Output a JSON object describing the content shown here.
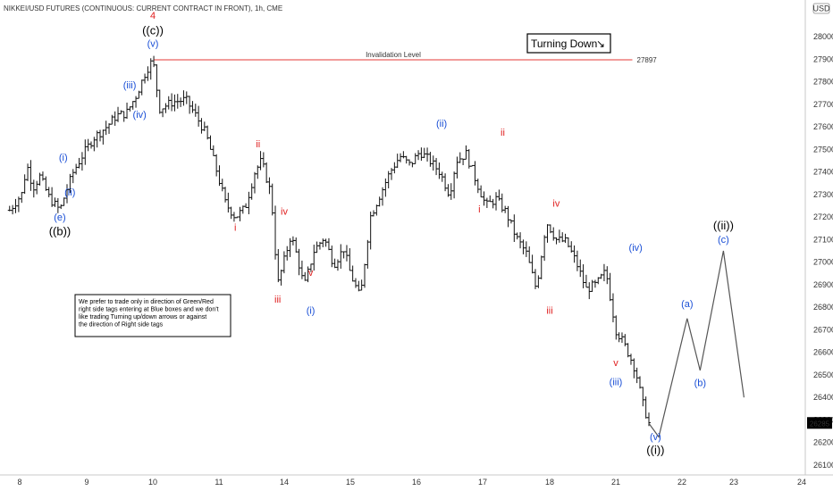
{
  "chart_data": {
    "type": "ohlc",
    "title": "NIKKEI/USD FUTURES (CONTINUOUS: CURRENT CONTRACT IN FRONT), 1h, CME",
    "currency_badge": "USD",
    "ylim": [
      26050,
      28150
    ],
    "y_ticks": [
      26100,
      26200,
      26300,
      26400,
      26500,
      26600,
      26700,
      26800,
      26900,
      27000,
      27100,
      27200,
      27300,
      27400,
      27500,
      27600,
      27700,
      27800,
      27900,
      28000
    ],
    "x_ticks": [
      {
        "label": "8",
        "t": 0
      },
      {
        "label": "9",
        "t": 1
      },
      {
        "label": "10",
        "t": 2
      },
      {
        "label": "11",
        "t": 3
      },
      {
        "label": "14",
        "t": 4
      },
      {
        "label": "15",
        "t": 5
      },
      {
        "label": "16",
        "t": 6
      },
      {
        "label": "17",
        "t": 7
      },
      {
        "label": "18",
        "t": 8
      },
      {
        "label": "21",
        "t": 9
      },
      {
        "label": "22",
        "t": 10
      },
      {
        "label": "23",
        "t": 11
      },
      {
        "label": "24",
        "t": 12
      }
    ],
    "price_path": [
      [
        -0.15,
        27230
      ],
      [
        0.05,
        27310
      ],
      [
        0.1,
        27440
      ],
      [
        0.2,
        27330
      ],
      [
        0.3,
        27380
      ],
      [
        0.45,
        27280
      ],
      [
        0.6,
        27230
      ],
      [
        0.7,
        27320
      ],
      [
        0.8,
        27400
      ],
      [
        0.95,
        27480
      ],
      [
        1.1,
        27550
      ],
      [
        1.3,
        27600
      ],
      [
        1.45,
        27650
      ],
      [
        1.6,
        27660
      ],
      [
        1.75,
        27740
      ],
      [
        1.9,
        27850
      ],
      [
        2.0,
        27897
      ],
      [
        2.1,
        27680
      ],
      [
        2.3,
        27710
      ],
      [
        2.5,
        27720
      ],
      [
        2.65,
        27650
      ],
      [
        2.8,
        27570
      ],
      [
        2.95,
        27420
      ],
      [
        3.1,
        27260
      ],
      [
        3.25,
        27200
      ],
      [
        3.4,
        27240
      ],
      [
        3.55,
        27400
      ],
      [
        3.65,
        27450
      ],
      [
        3.8,
        27300
      ],
      [
        3.9,
        26900
      ],
      [
        4.0,
        27010
      ],
      [
        4.1,
        27120
      ],
      [
        4.2,
        27020
      ],
      [
        4.3,
        26890
      ],
      [
        4.45,
        27050
      ],
      [
        4.6,
        27110
      ],
      [
        4.75,
        26990
      ],
      [
        4.9,
        27060
      ],
      [
        5.0,
        26950
      ],
      [
        5.15,
        26840
      ],
      [
        5.3,
        27200
      ],
      [
        5.45,
        27300
      ],
      [
        5.6,
        27400
      ],
      [
        5.75,
        27470
      ],
      [
        5.9,
        27430
      ],
      [
        6.05,
        27490
      ],
      [
        6.2,
        27450
      ],
      [
        6.35,
        27400
      ],
      [
        6.5,
        27300
      ],
      [
        6.6,
        27450
      ],
      [
        6.75,
        27480
      ],
      [
        6.9,
        27360
      ],
      [
        7.05,
        27250
      ],
      [
        7.2,
        27280
      ],
      [
        7.35,
        27220
      ],
      [
        7.5,
        27110
      ],
      [
        7.65,
        27040
      ],
      [
        7.8,
        26880
      ],
      [
        7.95,
        27180
      ],
      [
        8.1,
        27100
      ],
      [
        8.25,
        27090
      ],
      [
        8.4,
        27000
      ],
      [
        8.55,
        26880
      ],
      [
        8.7,
        26900
      ],
      [
        8.85,
        26960
      ],
      [
        9.0,
        26700
      ],
      [
        9.1,
        26650
      ],
      [
        9.2,
        26590
      ],
      [
        9.3,
        26520
      ],
      [
        9.4,
        26380
      ],
      [
        9.5,
        26285
      ]
    ],
    "invalidation": {
      "label": "Invalidation Level",
      "value": 27897
    },
    "last_price": 26285,
    "projection": [
      [
        9.5,
        26285
      ],
      [
        9.65,
        26225
      ],
      [
        10.1,
        26750
      ],
      [
        10.35,
        26520
      ],
      [
        10.8,
        27050
      ],
      [
        11.15,
        26400
      ]
    ],
    "turning_box": {
      "label": "Turning Down",
      "arrow": "↘"
    },
    "note": "We prefer to trade only in direction of Green/Red right side tags entering at Blue boxes and we don't like trading Turning up/down arrows or against the direction of Right side tags",
    "labels": [
      {
        "text": "4",
        "t": 2.0,
        "price": 28080,
        "color": "#e02020"
      },
      {
        "text": "((c))",
        "t": 2.0,
        "price": 28010,
        "color": "#000000",
        "big": true
      },
      {
        "text": "(v)",
        "t": 2.0,
        "price": 27955,
        "color": "#1a4fd6"
      },
      {
        "text": "(iii)",
        "t": 1.65,
        "price": 27770,
        "color": "#1a4fd6"
      },
      {
        "text": "(iv)",
        "t": 1.8,
        "price": 27640,
        "color": "#1a4fd6"
      },
      {
        "text": "(i)",
        "t": 0.65,
        "price": 27450,
        "color": "#1a4fd6"
      },
      {
        "text": "(ii)",
        "t": 0.75,
        "price": 27295,
        "color": "#1a4fd6"
      },
      {
        "text": "(e)",
        "t": 0.6,
        "price": 27185,
        "color": "#1a4fd6"
      },
      {
        "text": "((b))",
        "t": 0.6,
        "price": 27120,
        "color": "#000000",
        "big": true
      },
      {
        "text": "i",
        "t": 3.25,
        "price": 27140,
        "color": "#e02020"
      },
      {
        "text": "ii",
        "t": 3.6,
        "price": 27510,
        "color": "#e02020"
      },
      {
        "text": "iii",
        "t": 3.9,
        "price": 26820,
        "color": "#e02020"
      },
      {
        "text": "iv",
        "t": 4.0,
        "price": 27210,
        "color": "#e02020"
      },
      {
        "text": "v",
        "t": 4.4,
        "price": 26940,
        "color": "#e02020"
      },
      {
        "text": "(i)",
        "t": 4.4,
        "price": 26770,
        "color": "#1a4fd6"
      },
      {
        "text": "(ii)",
        "t": 6.38,
        "price": 27600,
        "color": "#1a4fd6"
      },
      {
        "text": "i",
        "t": 6.95,
        "price": 27220,
        "color": "#e02020"
      },
      {
        "text": "ii",
        "t": 7.3,
        "price": 27560,
        "color": "#e02020"
      },
      {
        "text": "iii",
        "t": 8.0,
        "price": 26770,
        "color": "#e02020"
      },
      {
        "text": "iv",
        "t": 8.1,
        "price": 27245,
        "color": "#e02020"
      },
      {
        "text": "v",
        "t": 9.0,
        "price": 26540,
        "color": "#e02020"
      },
      {
        "text": "(iii)",
        "t": 9.0,
        "price": 26455,
        "color": "#1a4fd6"
      },
      {
        "text": "(iv)",
        "t": 9.3,
        "price": 27050,
        "color": "#1a4fd6"
      },
      {
        "text": "(v)",
        "t": 9.6,
        "price": 26210,
        "color": "#1a4fd6"
      },
      {
        "text": "((i))",
        "t": 9.6,
        "price": 26150,
        "color": "#000000",
        "big": true
      },
      {
        "text": "(a)",
        "t": 10.1,
        "price": 26800,
        "color": "#1a4fd6"
      },
      {
        "text": "(b)",
        "t": 10.35,
        "price": 26450,
        "color": "#1a4fd6"
      },
      {
        "text": "((ii))",
        "t": 10.8,
        "price": 27145,
        "color": "#000000",
        "big": true
      },
      {
        "text": "(c)",
        "t": 10.8,
        "price": 27085,
        "color": "#1a4fd6"
      }
    ]
  }
}
